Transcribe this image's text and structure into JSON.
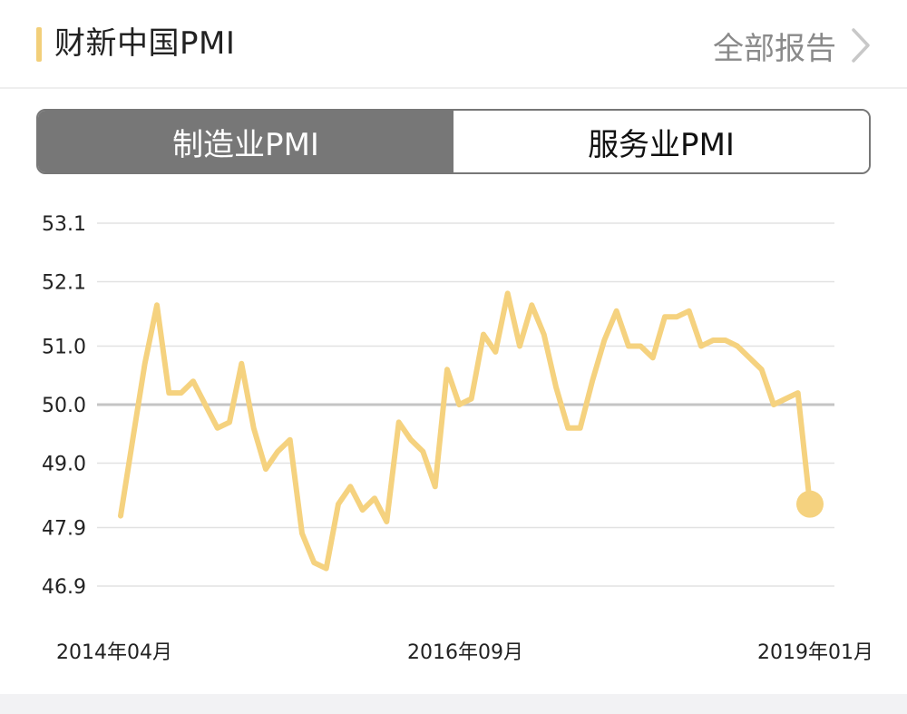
{
  "header": {
    "title": "财新中国PMI",
    "all_reports": "全部报告",
    "accent_color": "#f2cf7a"
  },
  "tabs": [
    {
      "label": "制造业PMI",
      "active": true
    },
    {
      "label": "服务业PMI",
      "active": false
    }
  ],
  "chart_data": {
    "type": "line",
    "y_ticks": [
      "53.1",
      "52.1",
      "51.0",
      "50.0",
      "49.0",
      "47.9",
      "46.9"
    ],
    "ylim": [
      46.9,
      53.1
    ],
    "x_ticks": [
      "2014年04月",
      "2016年09月",
      "2019年01月"
    ],
    "series": [
      {
        "color": "#f5d27f",
        "x": [
          "2014-04",
          "2014-05",
          "2014-06",
          "2014-07",
          "2014-08",
          "2014-09",
          "2014-10",
          "2014-11",
          "2014-12",
          "2015-01",
          "2015-02",
          "2015-03",
          "2015-04",
          "2015-05",
          "2015-06",
          "2015-07",
          "2015-08",
          "2015-09",
          "2015-10",
          "2015-11",
          "2015-12",
          "2016-01",
          "2016-02",
          "2016-03",
          "2016-04",
          "2016-05",
          "2016-06",
          "2016-07",
          "2016-08",
          "2016-09",
          "2016-10",
          "2016-11",
          "2016-12",
          "2017-01",
          "2017-02",
          "2017-03",
          "2017-04",
          "2017-05",
          "2017-06",
          "2017-07",
          "2017-08",
          "2017-09",
          "2017-10",
          "2017-11",
          "2017-12",
          "2018-01",
          "2018-02",
          "2018-03",
          "2018-04",
          "2018-05",
          "2018-06",
          "2018-07",
          "2018-08",
          "2018-09",
          "2018-10",
          "2018-11",
          "2018-12",
          "2019-01"
        ],
        "values": [
          48.1,
          49.4,
          50.7,
          51.7,
          50.2,
          50.2,
          50.4,
          50.0,
          49.6,
          49.7,
          50.7,
          49.6,
          48.9,
          49.2,
          49.4,
          47.8,
          47.3,
          47.2,
          48.3,
          48.6,
          48.2,
          48.4,
          48.0,
          49.7,
          49.4,
          49.2,
          48.6,
          50.6,
          50.0,
          50.1,
          51.2,
          50.9,
          51.9,
          51.0,
          51.7,
          51.2,
          50.3,
          49.6,
          49.6,
          50.4,
          51.1,
          51.6,
          51.0,
          51.0,
          50.8,
          51.5,
          51.5,
          51.6,
          51.0,
          51.1,
          51.1,
          51.0,
          50.8,
          50.6,
          50.0,
          50.1,
          50.2,
          48.3
        ]
      }
    ],
    "reference_line": 50.0,
    "grid": true,
    "last_point_marker": true
  }
}
